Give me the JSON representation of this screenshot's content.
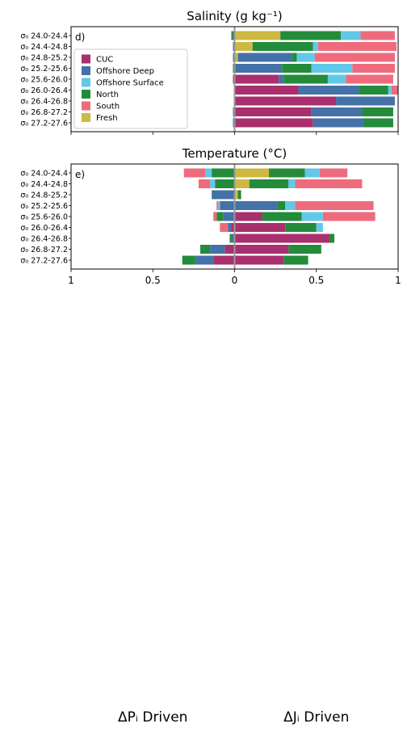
{
  "colors": {
    "CUC": "#A8306E",
    "Offshore Deep": "#4472A8",
    "Offshore Surface": "#62C8E8",
    "North": "#248B3A",
    "South": "#EE6B7E",
    "Fresh": "#CDB942"
  },
  "chart_data": {
    "type": "bar",
    "orientation": "horizontal-stacked-diverging",
    "categories": [
      "σ₀ 24.0-24.4",
      "σ₀ 24.4-24.8",
      "σ₀ 24.8-25.2",
      "σ₀ 25.2-25.6",
      "σ₀ 25.6-26.0",
      "σ₀ 26.0-26.4",
      "σ₀ 26.4-26.8",
      "σ₀ 26.8-27.2",
      "σ₀ 27.2-27.6"
    ],
    "xlim": [
      -1,
      1
    ],
    "xticks": [
      -1,
      -0.5,
      0,
      0.5,
      1
    ],
    "xtick_labels": [
      "1",
      "0.5",
      "0",
      "0.5",
      "1"
    ],
    "xlabel_left": "ΔPᵢ Driven",
    "xlabel_right": "ΔJᵢ Driven",
    "legend": {
      "placement": "upper-left of panel d",
      "entries": [
        "CUC",
        "Offshore Deep",
        "Offshore Surface",
        "North",
        "South",
        "Fresh"
      ]
    },
    "panels": [
      {
        "label": "d)",
        "title": "Salinity (g kg⁻¹)",
        "left": [
          {
            "CUC": 0.0,
            "Offshore Deep": 0.01,
            "Offshore Surface": 0.0,
            "North": 0.01,
            "South": 0.0
          },
          {
            "CUC": 0.0,
            "Offshore Deep": 0.01,
            "Offshore Surface": 0.0,
            "North": 0.0,
            "South": 0.0
          },
          {
            "CUC": 0.0,
            "Offshore Deep": 0.01,
            "Offshore Surface": 0.0,
            "North": 0.0,
            "South": 0.0
          },
          {
            "CUC": 0.0,
            "Offshore Deep": 0.0,
            "Offshore Surface": 0.0,
            "North": 0.01,
            "South": 0.0
          },
          {
            "CUC": 0.01,
            "Offshore Deep": 0.0,
            "Offshore Surface": 0.0,
            "North": 0.0,
            "South": 0.0
          },
          {
            "CUC": 0.0,
            "Offshore Deep": 0.0,
            "Offshore Surface": 0.0,
            "North": 0.0,
            "South": 0.0
          },
          {
            "CUC": 0.0,
            "Offshore Deep": 0.0,
            "Offshore Surface": 0.0,
            "North": 0.0,
            "South": 0.0
          },
          {
            "CUC": 0.0,
            "Offshore Deep": 0.01,
            "Offshore Surface": 0.0,
            "North": 0.0,
            "South": 0.0
          },
          {
            "CUC": 0.0,
            "Offshore Deep": 0.01,
            "Offshore Surface": 0.0,
            "North": 0.0,
            "South": 0.0
          }
        ],
        "right": [
          {
            "Fresh": 0.28,
            "CUC": 0.0,
            "Offshore Deep": 0.0,
            "North": 0.37,
            "Offshore Surface": 0.12,
            "South": 0.21
          },
          {
            "Fresh": 0.11,
            "CUC": 0.0,
            "Offshore Deep": 0.0,
            "North": 0.37,
            "Offshore Surface": 0.03,
            "South": 0.48
          },
          {
            "Fresh": 0.02,
            "CUC": 0.0,
            "Offshore Deep": 0.33,
            "North": 0.03,
            "Offshore Surface": 0.11,
            "South": 0.49
          },
          {
            "Fresh": 0.0,
            "CUC": 0.0,
            "Offshore Deep": 0.29,
            "North": 0.18,
            "Offshore Surface": 0.25,
            "South": 0.26
          },
          {
            "Fresh": 0.0,
            "CUC": 0.27,
            "Offshore Deep": 0.03,
            "North": 0.27,
            "Offshore Surface": 0.11,
            "South": 0.29
          },
          {
            "Fresh": 0.0,
            "CUC": 0.39,
            "Offshore Deep": 0.37,
            "North": 0.18,
            "Offshore Surface": 0.02,
            "South": 0.04
          },
          {
            "Fresh": 0.0,
            "CUC": 0.62,
            "Offshore Deep": 0.36,
            "North": 0.0,
            "Offshore Surface": 0.0,
            "South": 0.0
          },
          {
            "Fresh": 0.0,
            "CUC": 0.47,
            "Offshore Deep": 0.31,
            "North": 0.19,
            "Offshore Surface": 0.0,
            "South": 0.0
          },
          {
            "Fresh": 0.0,
            "CUC": 0.48,
            "Offshore Deep": 0.31,
            "North": 0.18,
            "Offshore Surface": 0.0,
            "South": 0.0
          }
        ]
      },
      {
        "label": "e)",
        "title": "Temperature (°C)",
        "left": [
          {
            "CUC": 0.0,
            "Offshore Deep": 0.0,
            "North": 0.14,
            "Offshore Surface": 0.04,
            "South": 0.13
          },
          {
            "CUC": 0.0,
            "Offshore Deep": 0.0,
            "North": 0.12,
            "Offshore Surface": 0.03,
            "South": 0.07
          },
          {
            "CUC": 0.0,
            "Offshore Deep": 0.14,
            "North": 0.0,
            "Offshore Surface": 0.0,
            "South": 0.0
          },
          {
            "CUC": 0.0,
            "Offshore Deep": 0.09,
            "North": 0.0,
            "Offshore Surface": 0.01,
            "South": 0.01
          },
          {
            "CUC": 0.0,
            "Offshore Deep": 0.07,
            "North": 0.04,
            "Offshore Surface": 0.0,
            "South": 0.02
          },
          {
            "CUC": 0.02,
            "Offshore Deep": 0.02,
            "North": 0.0,
            "Offshore Surface": 0.0,
            "South": 0.05
          },
          {
            "CUC": 0.0,
            "Offshore Deep": 0.02,
            "North": 0.01,
            "Offshore Surface": 0.0,
            "South": 0.0
          },
          {
            "CUC": 0.06,
            "Offshore Deep": 0.09,
            "North": 0.06,
            "Offshore Surface": 0.0,
            "South": 0.0
          },
          {
            "CUC": 0.13,
            "Offshore Deep": 0.11,
            "North": 0.08,
            "Offshore Surface": 0.0,
            "South": 0.0
          }
        ],
        "right": [
          {
            "Fresh": 0.21,
            "CUC": 0.0,
            "Offshore Deep": 0.0,
            "North": 0.22,
            "Offshore Surface": 0.09,
            "South": 0.17
          },
          {
            "Fresh": 0.09,
            "CUC": 0.0,
            "Offshore Deep": 0.0,
            "North": 0.24,
            "Offshore Surface": 0.04,
            "South": 0.41
          },
          {
            "Fresh": 0.02,
            "CUC": 0.0,
            "Offshore Deep": 0.0,
            "North": 0.02,
            "Offshore Surface": 0.0,
            "South": 0.0
          },
          {
            "Fresh": 0.0,
            "CUC": 0.0,
            "Offshore Deep": 0.26,
            "North": 0.05,
            "Offshore Surface": 0.06,
            "South": 0.48
          },
          {
            "Fresh": 0.0,
            "CUC": 0.17,
            "Offshore Deep": 0.0,
            "North": 0.24,
            "Offshore Surface": 0.13,
            "South": 0.32
          },
          {
            "Fresh": 0.0,
            "CUC": 0.31,
            "Offshore Deep": 0.0,
            "North": 0.19,
            "Offshore Surface": 0.04,
            "South": 0.0
          },
          {
            "Fresh": 0.0,
            "CUC": 0.58,
            "Offshore Deep": 0.0,
            "North": 0.03,
            "Offshore Surface": 0.0,
            "South": 0.0
          },
          {
            "Fresh": 0.0,
            "CUC": 0.33,
            "Offshore Deep": 0.0,
            "North": 0.2,
            "Offshore Surface": 0.0,
            "South": 0.0
          },
          {
            "Fresh": 0.0,
            "CUC": 0.3,
            "Offshore Deep": 0.0,
            "North": 0.15,
            "Offshore Surface": 0.0,
            "South": 0.0
          }
        ]
      }
    ]
  }
}
